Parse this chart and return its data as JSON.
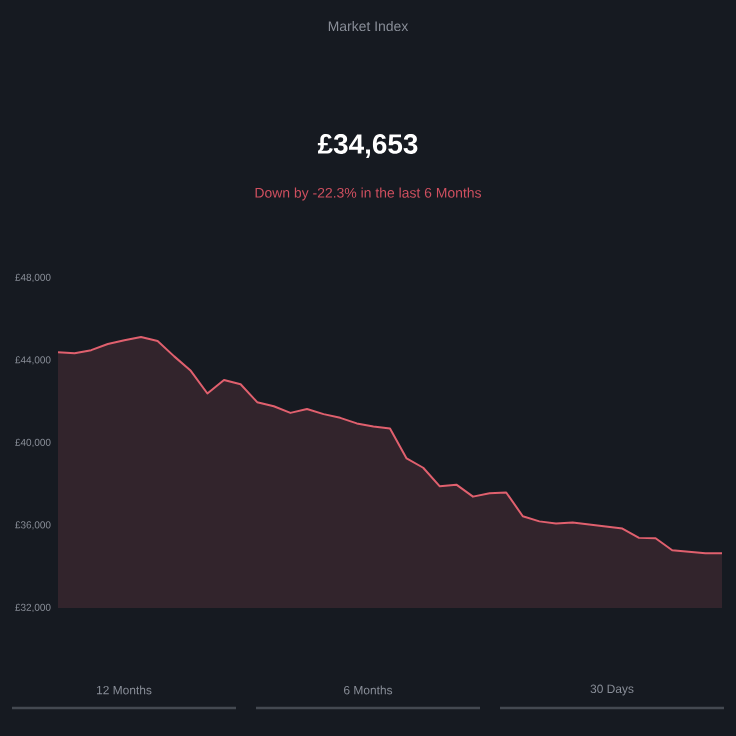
{
  "chart_data": {
    "type": "area",
    "title": "Market Index",
    "annotations": [
      "£34,653",
      "Down by -22.3% in the last 6 Months",
      "12 Months",
      "6 Months",
      "30 Days"
    ],
    "categories": [
      null,
      null,
      null,
      null,
      null,
      null,
      null,
      null,
      null,
      null,
      null,
      null,
      null,
      null,
      null,
      null,
      null,
      null,
      null,
      null,
      null,
      null,
      null,
      null,
      null,
      null,
      null,
      null,
      null,
      null,
      null,
      null,
      null,
      null,
      null,
      null,
      null,
      null,
      null,
      null,
      null
    ],
    "series": [
      {
        "color": "#e0606e",
        "values": [
          44400,
          44350,
          44500,
          44800,
          44980,
          45140,
          44950,
          44200,
          43500,
          42400,
          43050,
          42850,
          41980,
          41780,
          41460,
          41650,
          41400,
          41220,
          40950,
          40800,
          40700,
          39250,
          38800,
          37900,
          37980,
          37400,
          37560,
          37600,
          36450,
          36200,
          36100,
          36150,
          36050,
          35950,
          35850,
          35400,
          35380,
          34800,
          34730,
          34660,
          34650
        ]
      }
    ],
    "ylim": [
      32000,
      48000
    ],
    "yticks": [
      {
        "value": 32000,
        "label": "£32,000"
      },
      {
        "value": 36000,
        "label": "£36,000"
      },
      {
        "value": 40000,
        "label": "£40,000"
      },
      {
        "value": 44000,
        "label": "£44,000"
      },
      {
        "value": 48000,
        "label": "£48,000"
      }
    ],
    "tick_labels": "y"
  }
}
